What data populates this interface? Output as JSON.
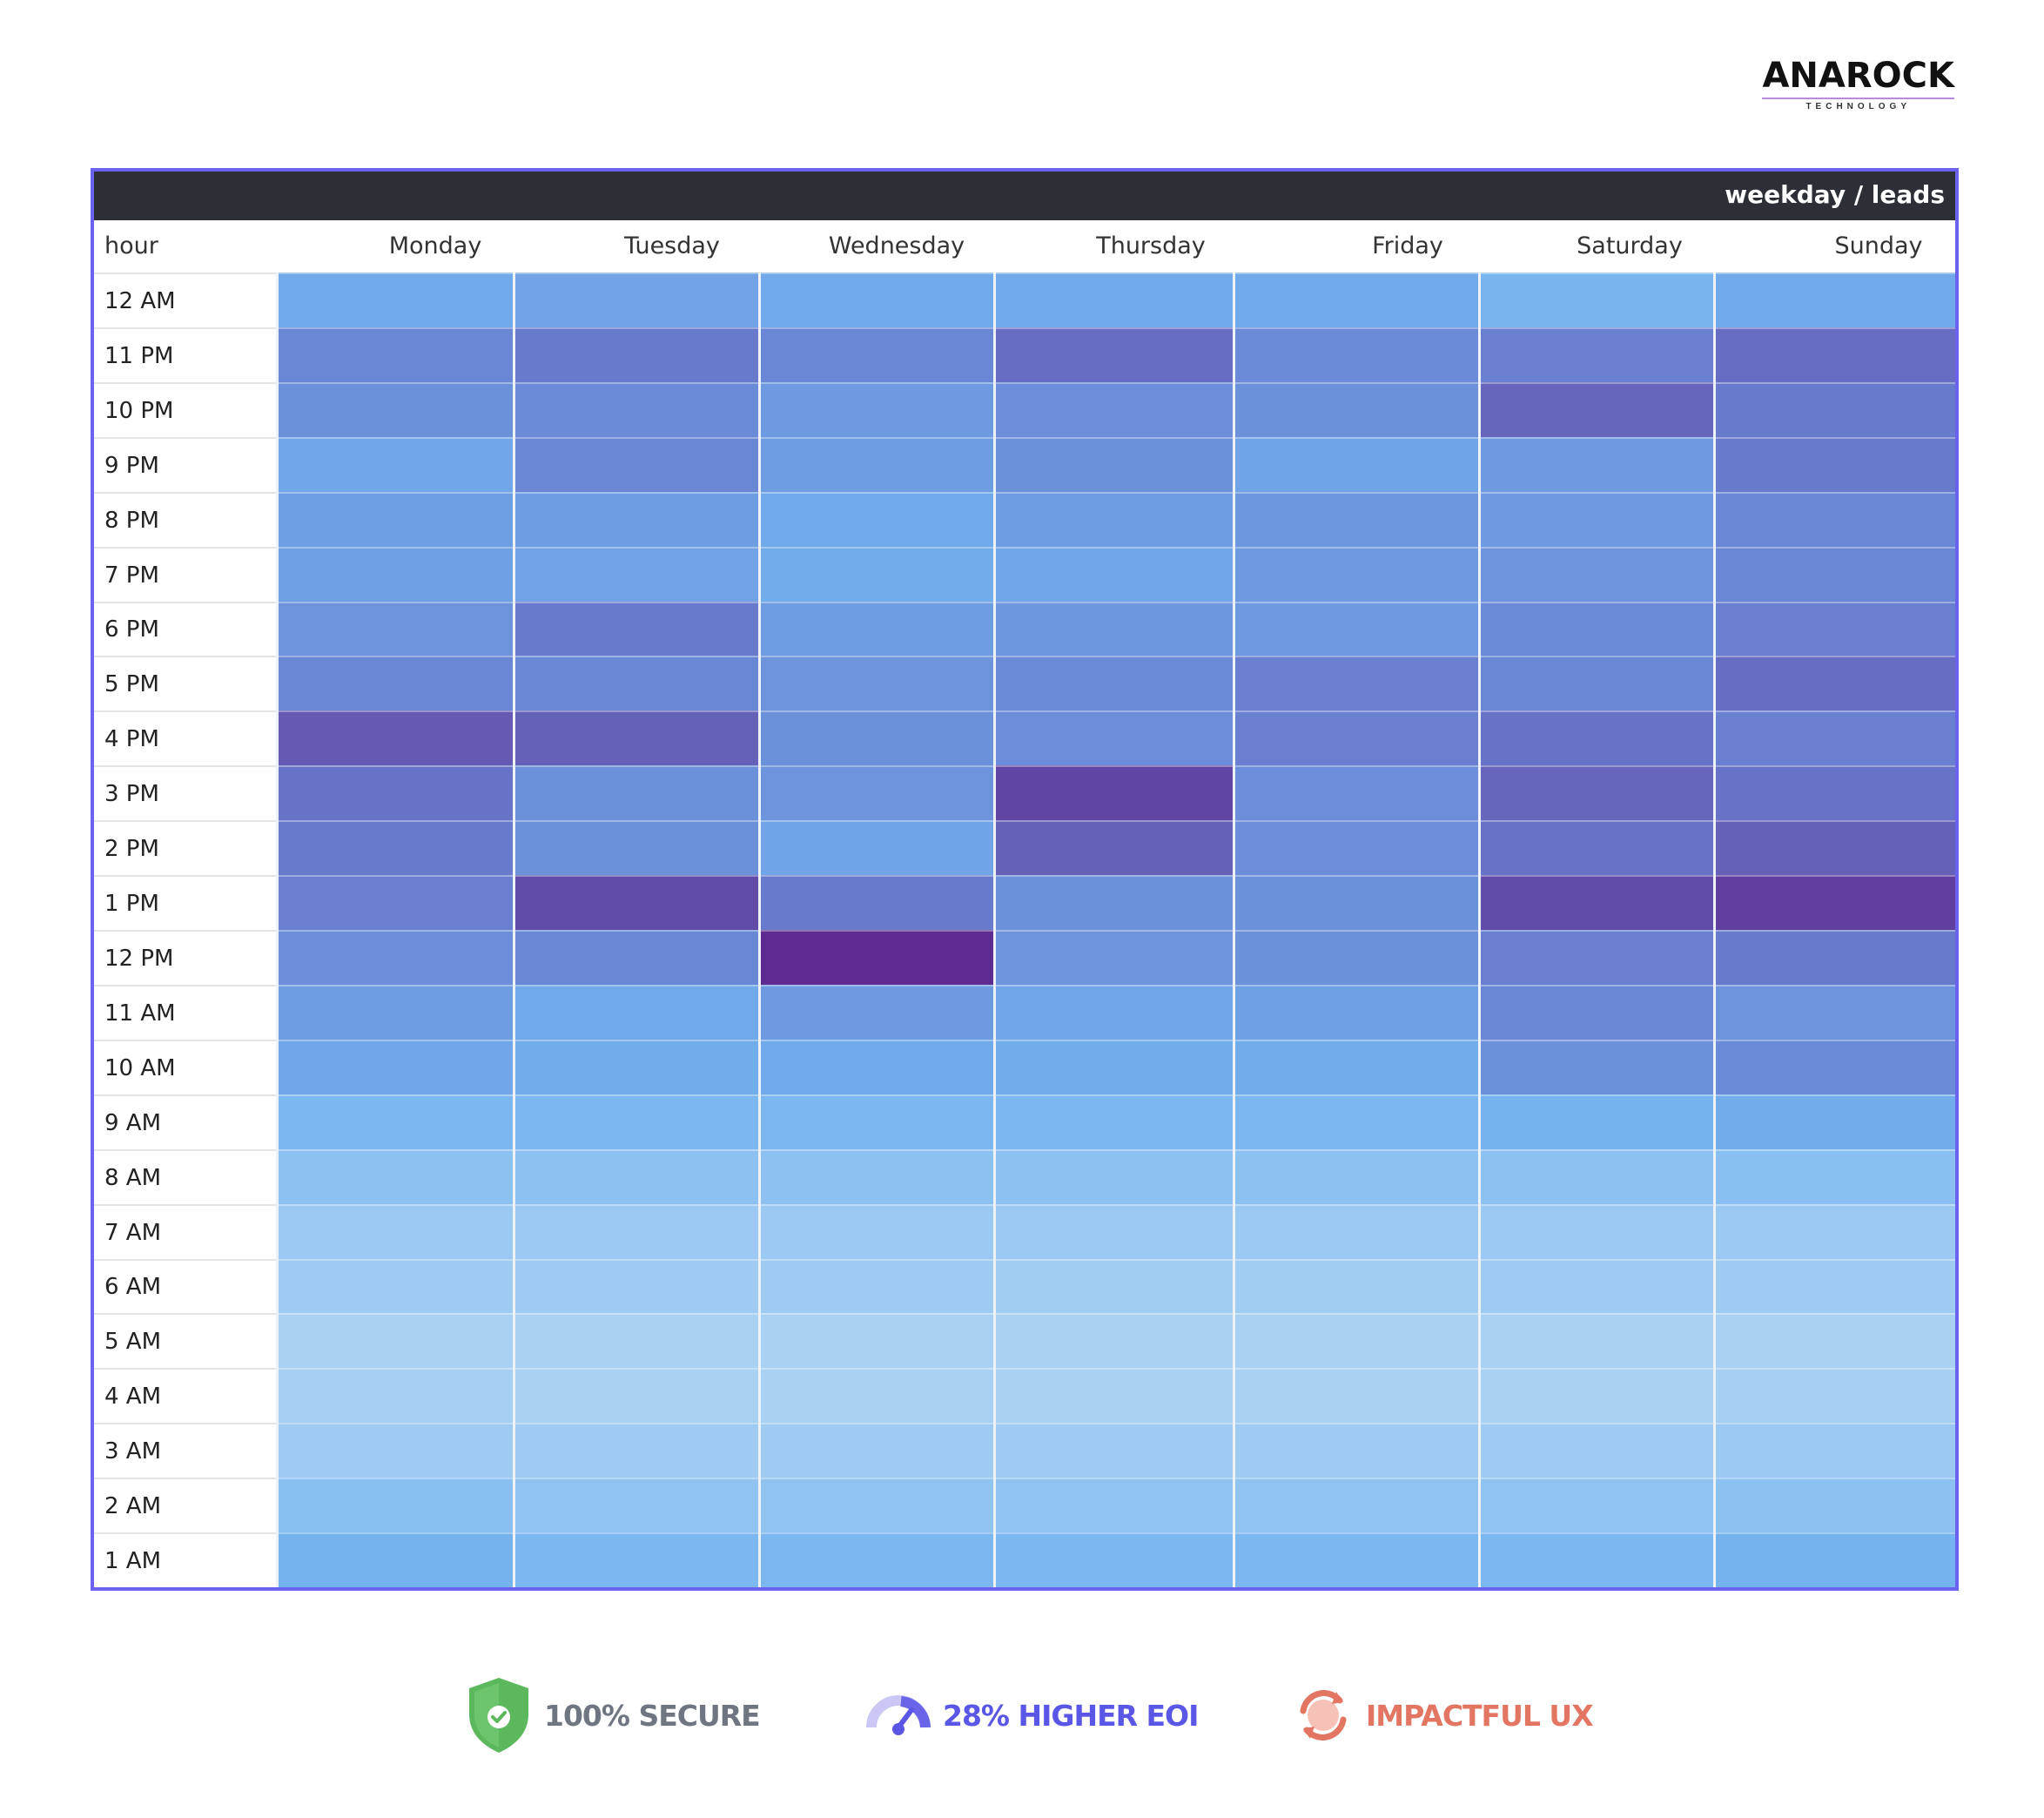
{
  "logo": {
    "word": "ANAROCK",
    "sub": "TECHNOLOGY"
  },
  "chart_data": {
    "type": "heatmap",
    "title": "weekday / leads",
    "row_header": "hour",
    "columns": [
      "Monday",
      "Tuesday",
      "Wednesday",
      "Thursday",
      "Friday",
      "Saturday",
      "Sunday"
    ],
    "rows": [
      "12 AM",
      "11 PM",
      "10 PM",
      "9 PM",
      "8 PM",
      "7 PM",
      "6 PM",
      "5 PM",
      "4 PM",
      "3 PM",
      "2 PM",
      "1 PM",
      "12 PM",
      "11 AM",
      "10 AM",
      "9 AM",
      "8 AM",
      "7 AM",
      "6 AM",
      "5 AM",
      "4 AM",
      "3 AM",
      "2 AM",
      "1 AM"
    ],
    "values": [
      [
        0.5,
        0.55,
        0.5,
        0.5,
        0.5,
        0.42,
        0.5
      ],
      [
        0.72,
        0.76,
        0.72,
        0.8,
        0.7,
        0.74,
        0.8
      ],
      [
        0.66,
        0.7,
        0.6,
        0.68,
        0.66,
        0.82,
        0.76
      ],
      [
        0.52,
        0.72,
        0.58,
        0.66,
        0.54,
        0.6,
        0.76
      ],
      [
        0.57,
        0.58,
        0.5,
        0.58,
        0.62,
        0.6,
        0.72
      ],
      [
        0.56,
        0.55,
        0.48,
        0.52,
        0.6,
        0.64,
        0.72
      ],
      [
        0.64,
        0.76,
        0.58,
        0.62,
        0.6,
        0.7,
        0.74
      ],
      [
        0.72,
        0.72,
        0.64,
        0.7,
        0.74,
        0.72,
        0.8
      ],
      [
        0.86,
        0.84,
        0.66,
        0.68,
        0.74,
        0.78,
        0.74
      ],
      [
        0.78,
        0.66,
        0.64,
        0.92,
        0.68,
        0.82,
        0.78
      ],
      [
        0.76,
        0.66,
        0.54,
        0.84,
        0.68,
        0.78,
        0.84
      ],
      [
        0.74,
        0.9,
        0.76,
        0.66,
        0.66,
        0.9,
        0.94
      ],
      [
        0.68,
        0.72,
        1.0,
        0.64,
        0.66,
        0.74,
        0.76
      ],
      [
        0.58,
        0.5,
        0.6,
        0.52,
        0.56,
        0.72,
        0.64
      ],
      [
        0.52,
        0.48,
        0.5,
        0.48,
        0.48,
        0.66,
        0.7
      ],
      [
        0.4,
        0.4,
        0.4,
        0.4,
        0.4,
        0.44,
        0.48
      ],
      [
        0.3,
        0.3,
        0.3,
        0.3,
        0.3,
        0.3,
        0.32
      ],
      [
        0.22,
        0.22,
        0.22,
        0.22,
        0.22,
        0.22,
        0.22
      ],
      [
        0.2,
        0.2,
        0.2,
        0.18,
        0.18,
        0.2,
        0.2
      ],
      [
        0.14,
        0.14,
        0.14,
        0.14,
        0.14,
        0.14,
        0.14
      ],
      [
        0.16,
        0.14,
        0.14,
        0.14,
        0.14,
        0.14,
        0.16
      ],
      [
        0.2,
        0.2,
        0.2,
        0.2,
        0.2,
        0.2,
        0.22
      ],
      [
        0.32,
        0.28,
        0.28,
        0.28,
        0.28,
        0.28,
        0.3
      ],
      [
        0.44,
        0.4,
        0.4,
        0.4,
        0.4,
        0.4,
        0.44
      ]
    ],
    "color_scale": [
      "#c2dff7",
      "#73b2ee",
      "#6a87d6",
      "#5e2b90"
    ]
  },
  "badges": [
    {
      "icon": "shield-check-icon",
      "text": "100% SECURE",
      "color": "#6f7681",
      "icon_color": "#5cb85c"
    },
    {
      "icon": "speedometer-icon",
      "text": "28% HIGHER EOI",
      "color": "#5b57e6",
      "icon_color": "#6a64e8"
    },
    {
      "icon": "refresh-cycle-icon",
      "text": "IMPACTFUL UX",
      "color": "#e27663",
      "icon_color": "#e27663"
    }
  ]
}
